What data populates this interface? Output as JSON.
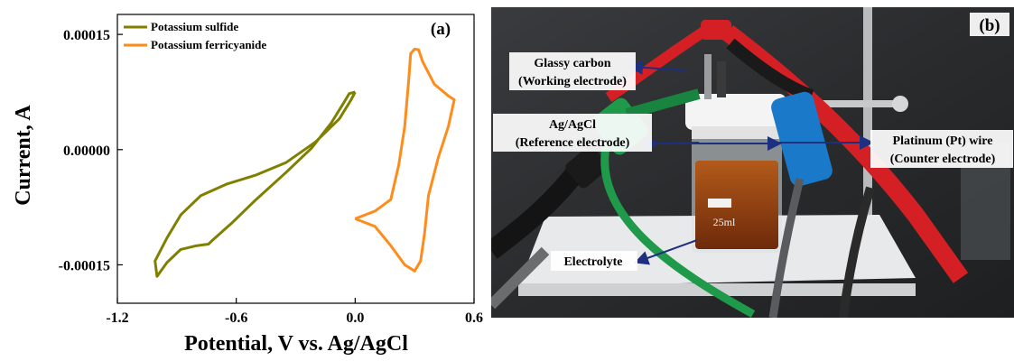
{
  "chart_data": {
    "type": "line",
    "panel_label": "(a)",
    "xlabel": "Potential, V vs. Ag/AgCl",
    "ylabel": "Current, A",
    "xlim": [
      -1.2,
      0.6
    ],
    "ylim": [
      -0.0002,
      0.000176
    ],
    "x_ticks": [
      -1.2,
      -0.6,
      0.0,
      0.6
    ],
    "x_tick_labels": [
      "-1.2",
      "-0.6",
      "0.0",
      "0.6"
    ],
    "y_ticks": [
      0.00015,
      0.0,
      -0.00015
    ],
    "y_tick_labels": [
      "0.00015",
      "0.00000",
      "-0.00015"
    ],
    "grid": false,
    "legend_position": "top-left",
    "series": [
      {
        "name": "Potassium sulfide",
        "color": "#808000",
        "x": [
          0.0,
          -0.02,
          -0.08,
          -0.2,
          -0.35,
          -0.5,
          -0.65,
          -0.78,
          -0.88,
          -0.95,
          -1.01,
          -1.0,
          -0.95,
          -0.88,
          -0.8,
          -0.74,
          -0.72,
          -0.62,
          -0.5,
          -0.35,
          -0.22,
          -0.12,
          -0.06,
          -0.03,
          0.0,
          0.0
        ],
        "y": [
          7.5e-05,
          6.5e-05,
          4e-05,
          1e-05,
          -1.7e-05,
          -3.3e-05,
          -4.5e-05,
          -6e-05,
          -8.5e-05,
          -0.000115,
          -0.000145,
          -0.000165,
          -0.000147,
          -0.00013,
          -0.000125,
          -0.000123,
          -0.000118,
          -9.5e-05,
          -6.5e-05,
          -3e-05,
          2e-06,
          3.5e-05,
          6e-05,
          7.3e-05,
          7.5e-05,
          7.5e-05
        ]
      },
      {
        "name": "Potassium ferricyanide",
        "color": "#ff8c1a",
        "x": [
          0.0,
          0.1,
          0.18,
          0.22,
          0.25,
          0.27,
          0.28,
          0.3,
          0.32,
          0.34,
          0.4,
          0.47,
          0.5,
          0.47,
          0.42,
          0.37,
          0.35,
          0.33,
          0.3,
          0.25,
          0.18,
          0.1,
          0.0
        ],
        "y": [
          -9e-05,
          -8e-05,
          -6.5e-05,
          -2e-05,
          3e-05,
          9e-05,
          0.000125,
          0.000131,
          0.00013,
          0.000115,
          8.5e-05,
          7e-05,
          6.5e-05,
          3e-05,
          -1e-05,
          -6e-05,
          -0.00011,
          -0.000145,
          -0.000158,
          -0.00015,
          -0.000125,
          -0.0001,
          -9e-05
        ]
      }
    ]
  },
  "photo": {
    "panel_label": "(b)",
    "labels": {
      "glassy_carbon_line1": "Glassy carbon",
      "glassy_carbon_line2": "(Working electrode)",
      "ref_line1": "Ag/AgCl",
      "ref_line2": "(Reference electrode)",
      "pt_line1": "Platinum (Pt) wire",
      "pt_line2": "(Counter electrode)",
      "electrolyte": "Electrolyte",
      "beaker_volume": "25ml"
    },
    "colors": {
      "background": "#2a2b2d",
      "cable_red": "#d42025",
      "cable_green": "#1f9a4a",
      "cable_blue": "#1b79c9",
      "cable_black": "#1a1a1a",
      "electrolyte": "#8a3a10",
      "arrow": "#1d2f80"
    }
  }
}
